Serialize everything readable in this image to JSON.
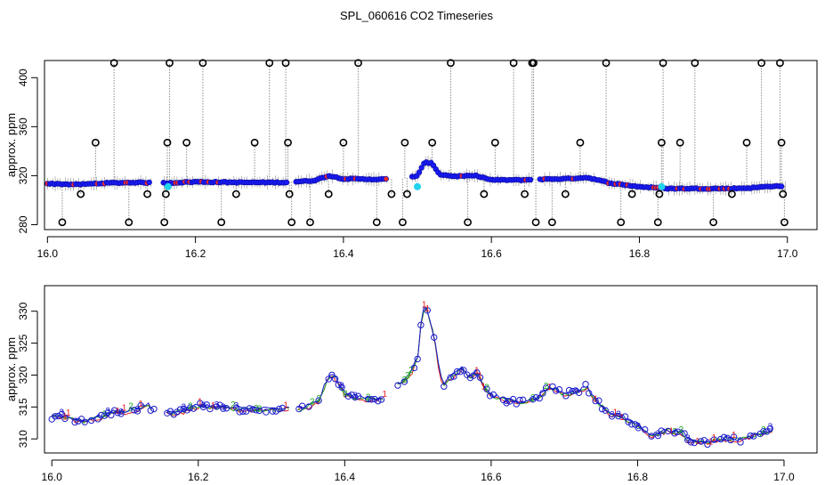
{
  "title": "SPL_060616  CO2 Timeseries",
  "colors": {
    "frame": "#000000",
    "raw_line": "#8c8c8c",
    "outlier_marker": "#000000",
    "fill_blue": "#1a1aff",
    "fill_red": "#ff2a2a",
    "highlight_cyan": "#22d3ee",
    "series_1_red": "#e31a1c",
    "series_2_green": "#1aaa1a",
    "series_3_blue": "#1a1acc"
  },
  "chart_data": [
    {
      "name": "raw",
      "type": "scatter",
      "xlabel": "",
      "ylabel": "approx. ppm",
      "xlim": [
        15.996,
        17.04
      ],
      "ylim": [
        276,
        414
      ],
      "x_ticks": [
        16.0,
        16.2,
        16.4,
        16.6,
        16.8,
        17.0
      ],
      "x_tick_labels": [
        "16.0",
        "16.2",
        "16.4",
        "16.6",
        "16.8",
        "17.0"
      ],
      "y_ticks": [
        280,
        320,
        360,
        400
      ],
      "y_tick_labels": [
        "280",
        "320",
        "360",
        "400"
      ],
      "baseline": [
        [
          16.0,
          313.5
        ],
        [
          16.04,
          312.8
        ],
        [
          16.08,
          314
        ],
        [
          16.12,
          314.5
        ],
        [
          16.16,
          314
        ],
        [
          16.2,
          315
        ],
        [
          16.26,
          314.5
        ],
        [
          16.32,
          314.5
        ],
        [
          16.36,
          316
        ],
        [
          16.38,
          320
        ],
        [
          16.4,
          317.5
        ],
        [
          16.45,
          317
        ],
        [
          16.48,
          317.5
        ],
        [
          16.5,
          320
        ],
        [
          16.51,
          331
        ],
        [
          16.52,
          330
        ],
        [
          16.53,
          321
        ],
        [
          16.55,
          319.5
        ],
        [
          16.58,
          320
        ],
        [
          16.6,
          316.5
        ],
        [
          16.64,
          316.5
        ],
        [
          16.66,
          317
        ],
        [
          16.7,
          317.5
        ],
        [
          16.73,
          318.5
        ],
        [
          16.76,
          314
        ],
        [
          16.8,
          311
        ],
        [
          16.84,
          309.5
        ],
        [
          16.88,
          309.5
        ],
        [
          16.92,
          309.5
        ],
        [
          16.95,
          310
        ],
        [
          16.98,
          311.5
        ]
      ],
      "gaps": [
        [
          16.14,
          16.155
        ],
        [
          16.325,
          16.335
        ],
        [
          16.46,
          16.49
        ],
        [
          16.655,
          16.665
        ]
      ],
      "cyan_points": [
        [
          16.163,
          311
        ],
        [
          16.5,
          311
        ],
        [
          16.83,
          311
        ]
      ],
      "outliers": [
        [
          16.02,
          282
        ],
        [
          16.045,
          305
        ],
        [
          16.065,
          347
        ],
        [
          16.09,
          412
        ],
        [
          16.11,
          282
        ],
        [
          16.135,
          305
        ],
        [
          16.158,
          282
        ],
        [
          16.16,
          305
        ],
        [
          16.162,
          347
        ],
        [
          16.165,
          412
        ],
        [
          16.188,
          347
        ],
        [
          16.21,
          412
        ],
        [
          16.235,
          282
        ],
        [
          16.255,
          305
        ],
        [
          16.28,
          347
        ],
        [
          16.3,
          412
        ],
        [
          16.322,
          412
        ],
        [
          16.325,
          347
        ],
        [
          16.327,
          305
        ],
        [
          16.33,
          282
        ],
        [
          16.355,
          282
        ],
        [
          16.38,
          305
        ],
        [
          16.4,
          347
        ],
        [
          16.42,
          412
        ],
        [
          16.445,
          282
        ],
        [
          16.465,
          305
        ],
        [
          16.48,
          282
        ],
        [
          16.483,
          347
        ],
        [
          16.486,
          305
        ],
        [
          16.52,
          347
        ],
        [
          16.545,
          412
        ],
        [
          16.568,
          282
        ],
        [
          16.59,
          305
        ],
        [
          16.605,
          347
        ],
        [
          16.63,
          412
        ],
        [
          16.645,
          305
        ],
        [
          16.655,
          412
        ],
        [
          16.657,
          412
        ],
        [
          16.66,
          282
        ],
        [
          16.682,
          282
        ],
        [
          16.7,
          305
        ],
        [
          16.72,
          347
        ],
        [
          16.755,
          412
        ],
        [
          16.775,
          282
        ],
        [
          16.79,
          305
        ],
        [
          16.825,
          282
        ],
        [
          16.827,
          305
        ],
        [
          16.83,
          347
        ],
        [
          16.832,
          412
        ],
        [
          16.855,
          347
        ],
        [
          16.875,
          412
        ],
        [
          16.9,
          282
        ],
        [
          16.925,
          305
        ],
        [
          16.945,
          347
        ],
        [
          16.965,
          412
        ],
        [
          16.99,
          412
        ],
        [
          16.992,
          347
        ],
        [
          16.994,
          305
        ],
        [
          16.996,
          282
        ]
      ]
    },
    {
      "name": "filtered",
      "type": "line",
      "xlabel": "",
      "ylabel": "approx. ppm",
      "xlim": [
        15.99,
        17.045
      ],
      "ylim": [
        307.8,
        334
      ],
      "x_ticks": [
        16.0,
        16.2,
        16.4,
        16.6,
        16.8,
        17.0
      ],
      "x_tick_labels": [
        "16.0",
        "16.2",
        "16.4",
        "16.6",
        "16.8",
        "17.0"
      ],
      "y_ticks": [
        310,
        315,
        320,
        325,
        330
      ],
      "y_tick_labels": [
        "310",
        "315",
        "320",
        "325",
        "330"
      ],
      "series_labels": [
        "1",
        "2",
        "3"
      ],
      "baseline": [
        [
          16.0,
          313.5
        ],
        [
          16.02,
          313.5
        ],
        [
          16.04,
          312.7
        ],
        [
          16.06,
          313.2
        ],
        [
          16.08,
          314
        ],
        [
          16.1,
          314.3
        ],
        [
          16.12,
          314.7
        ],
        [
          16.13,
          315.5
        ],
        [
          16.14,
          314.3
        ],
        [
          16.155,
          314.3
        ],
        [
          16.16,
          314
        ],
        [
          16.18,
          314.3
        ],
        [
          16.2,
          315.2
        ],
        [
          16.22,
          315
        ],
        [
          16.24,
          314.8
        ],
        [
          16.26,
          314.6
        ],
        [
          16.28,
          314.7
        ],
        [
          16.3,
          314.6
        ],
        [
          16.32,
          314.6
        ],
        [
          16.335,
          314.6
        ],
        [
          16.35,
          315
        ],
        [
          16.365,
          316
        ],
        [
          16.375,
          319
        ],
        [
          16.385,
          320
        ],
        [
          16.39,
          319
        ],
        [
          16.4,
          317
        ],
        [
          16.42,
          316.3
        ],
        [
          16.44,
          316.2
        ],
        [
          16.46,
          316.6
        ],
        [
          16.47,
          318.5
        ],
        [
          16.48,
          319
        ],
        [
          16.49,
          320
        ],
        [
          16.5,
          323
        ],
        [
          16.505,
          329
        ],
        [
          16.51,
          331
        ],
        [
          16.515,
          329
        ],
        [
          16.52,
          327
        ],
        [
          16.525,
          324
        ],
        [
          16.53,
          320
        ],
        [
          16.535,
          318.5
        ],
        [
          16.54,
          319
        ],
        [
          16.55,
          320
        ],
        [
          16.56,
          321
        ],
        [
          16.57,
          319.5
        ],
        [
          16.58,
          320.5
        ],
        [
          16.59,
          318
        ],
        [
          16.6,
          316.8
        ],
        [
          16.62,
          316
        ],
        [
          16.64,
          315.8
        ],
        [
          16.66,
          316.2
        ],
        [
          16.68,
          318
        ],
        [
          16.7,
          317
        ],
        [
          16.72,
          317.5
        ],
        [
          16.73,
          318.2
        ],
        [
          16.74,
          316.5
        ],
        [
          16.76,
          314
        ],
        [
          16.78,
          313.3
        ],
        [
          16.8,
          312.2
        ],
        [
          16.82,
          310.5
        ],
        [
          16.84,
          311.3
        ],
        [
          16.86,
          311
        ],
        [
          16.87,
          309.8
        ],
        [
          16.88,
          309.4
        ],
        [
          16.9,
          309.6
        ],
        [
          16.92,
          310
        ],
        [
          16.94,
          309.8
        ],
        [
          16.96,
          310.5
        ],
        [
          16.98,
          311.2
        ]
      ],
      "gaps": [
        [
          16.14,
          16.155
        ],
        [
          16.325,
          16.335
        ],
        [
          16.455,
          16.47
        ]
      ]
    }
  ]
}
